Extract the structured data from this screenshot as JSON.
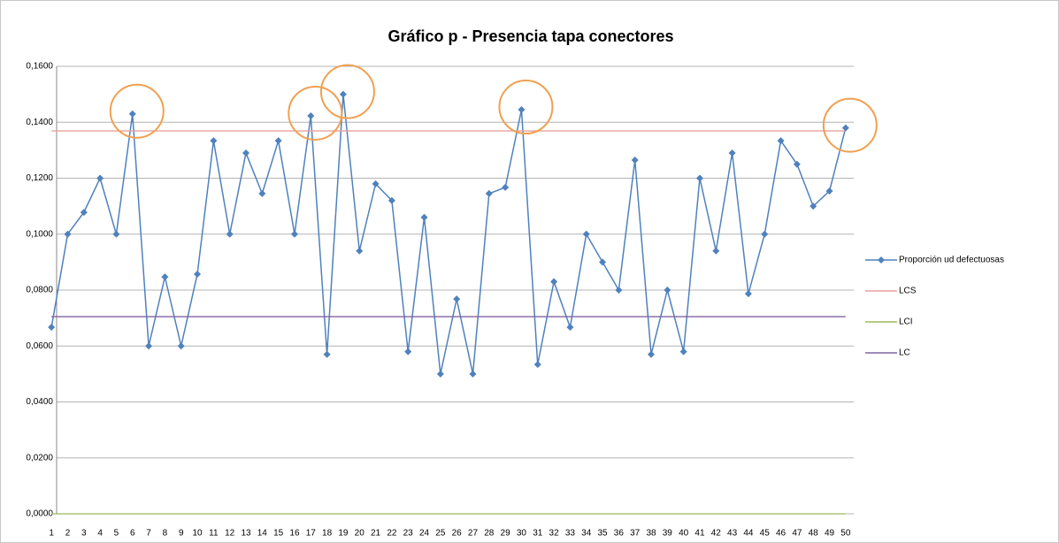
{
  "chart_data": {
    "type": "line",
    "title": "Gráfico p - Presencia tapa conectores",
    "categories": [
      "1",
      "2",
      "3",
      "4",
      "5",
      "6",
      "7",
      "8",
      "9",
      "10",
      "11",
      "12",
      "13",
      "14",
      "15",
      "16",
      "17",
      "18",
      "19",
      "20",
      "21",
      "22",
      "23",
      "24",
      "25",
      "26",
      "27",
      "28",
      "29",
      "30",
      "31",
      "32",
      "33",
      "34",
      "35",
      "36",
      "37",
      "38",
      "39",
      "40",
      "41",
      "42",
      "43",
      "44",
      "45",
      "46",
      "47",
      "48",
      "49",
      "50"
    ],
    "series": [
      {
        "name": "Proporción ud defectuosas",
        "color": "#4f81bd",
        "marker": "diamond",
        "values": [
          0.0667,
          0.1,
          0.1078,
          0.12,
          0.1,
          0.143,
          0.06,
          0.0847,
          0.06,
          0.0857,
          0.1334,
          0.1,
          0.129,
          0.1145,
          0.1334,
          0.1,
          0.1423,
          0.057,
          0.15,
          0.094,
          0.118,
          0.112,
          0.058,
          0.106,
          0.05,
          0.0768,
          0.05,
          0.1145,
          0.1167,
          0.1445,
          0.0534,
          0.083,
          0.0667,
          0.1,
          0.09,
          0.08,
          0.1265,
          0.057,
          0.08,
          0.058,
          0.12,
          0.094,
          0.129,
          0.0787,
          0.1,
          0.1334,
          0.125,
          0.11,
          0.1154,
          0.138
        ]
      },
      {
        "name": "LCS",
        "color": "#e8a09c",
        "values": [
          0.1369,
          0.1369,
          0.1369,
          0.1369,
          0.1369,
          0.1369,
          0.1369,
          0.1369,
          0.1369,
          0.1369,
          0.1369,
          0.1369,
          0.1369,
          0.1369,
          0.1369,
          0.1369,
          0.1369,
          0.1369,
          0.1369,
          0.1369,
          0.1369,
          0.1369,
          0.1369,
          0.1369,
          0.1369,
          0.1369,
          0.1369,
          0.1369,
          0.1369,
          0.1369,
          0.1369,
          0.1369,
          0.1369,
          0.1369,
          0.1369,
          0.1369,
          0.1369,
          0.1369,
          0.1369,
          0.1369,
          0.1369,
          0.1369,
          0.1369,
          0.1369,
          0.1369,
          0.1369,
          0.1369,
          0.1369,
          0.1369,
          0.1369
        ]
      },
      {
        "name": "LCI",
        "color": "#9bbb59",
        "values": [
          0,
          0,
          0,
          0,
          0,
          0,
          0,
          0,
          0,
          0,
          0,
          0,
          0,
          0,
          0,
          0,
          0,
          0,
          0,
          0,
          0,
          0,
          0,
          0,
          0,
          0,
          0,
          0,
          0,
          0,
          0,
          0,
          0,
          0,
          0,
          0,
          0,
          0,
          0,
          0,
          0,
          0,
          0,
          0,
          0,
          0,
          0,
          0,
          0,
          0
        ]
      },
      {
        "name": "LC",
        "color": "#8064a2",
        "values": [
          0.0705,
          0.0705,
          0.0705,
          0.0705,
          0.0705,
          0.0705,
          0.0705,
          0.0705,
          0.0705,
          0.0705,
          0.0705,
          0.0705,
          0.0705,
          0.0705,
          0.0705,
          0.0705,
          0.0705,
          0.0705,
          0.0705,
          0.0705,
          0.0705,
          0.0705,
          0.0705,
          0.0705,
          0.0705,
          0.0705,
          0.0705,
          0.0705,
          0.0705,
          0.0705,
          0.0705,
          0.0705,
          0.0705,
          0.0705,
          0.0705,
          0.0705,
          0.0705,
          0.0705,
          0.0705,
          0.0705,
          0.0705,
          0.0705,
          0.0705,
          0.0705,
          0.0705,
          0.0705,
          0.0705,
          0.0705,
          0.0705,
          0.0705
        ]
      }
    ],
    "ylim": [
      0,
      0.16
    ],
    "yticks": [
      {
        "value": 0,
        "label": "0,0000"
      },
      {
        "value": 0.02,
        "label": "0,0200"
      },
      {
        "value": 0.04,
        "label": "0,0400"
      },
      {
        "value": 0.06,
        "label": "0,0600"
      },
      {
        "value": 0.08,
        "label": "0,0800"
      },
      {
        "value": 0.1,
        "label": "0,1000"
      },
      {
        "value": 0.12,
        "label": "0,1200"
      },
      {
        "value": 0.14,
        "label": "0,1400"
      },
      {
        "value": 0.16,
        "label": "0,1600"
      }
    ],
    "grid": true,
    "legend": "right",
    "highlight_color": "#f0a050"
  }
}
